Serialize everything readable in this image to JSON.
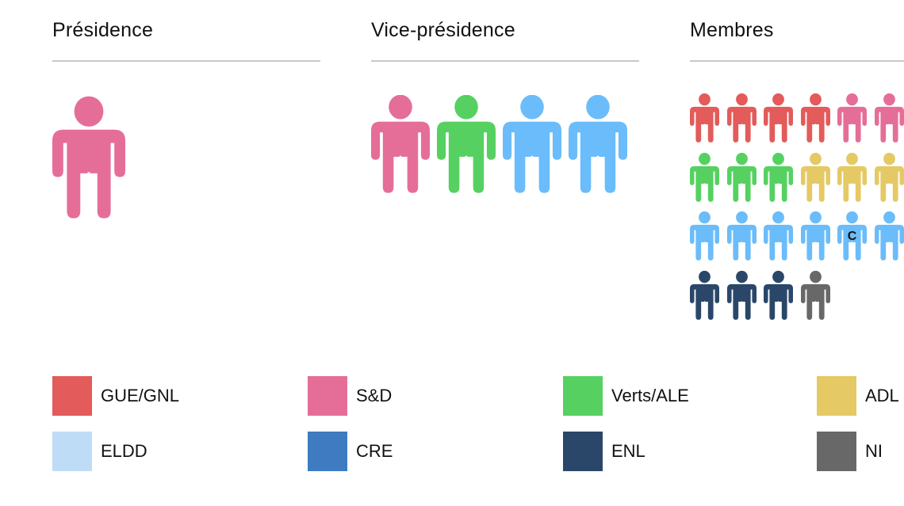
{
  "chart_data": {
    "type": "pictogram",
    "title": "",
    "groups": [
      {
        "key": "GUE/GNL",
        "label": "GUE/GNL",
        "color": "#e35b5a"
      },
      {
        "key": "S&D",
        "label": "S&D",
        "color": "#e56e98"
      },
      {
        "key": "Verts/ALE",
        "label": "Verts/ALE",
        "color": "#56d161"
      },
      {
        "key": "ADL",
        "label": "ADL",
        "color": "#e5c964"
      },
      {
        "key": "ELDD",
        "label": "ELDD",
        "color": "#bfdcf7"
      },
      {
        "key": "CRE",
        "label": "CRE",
        "color": "#3e7bc0"
      },
      {
        "key": "ENL",
        "label": "ENL",
        "color": "#2a4769"
      },
      {
        "key": "NI",
        "label": "NI",
        "color": "#686868"
      }
    ],
    "extra_colors": {
      "light_blue_figures": "#6bbcfa"
    },
    "sections": [
      {
        "title": "Présidence",
        "members": [
          {
            "color": "#e56e98",
            "group": "S&D"
          }
        ]
      },
      {
        "title": "Vice-présidence",
        "members": [
          {
            "color": "#e56e98",
            "group": "S&D"
          },
          {
            "color": "#56d161",
            "group": "Verts/ALE"
          },
          {
            "color": "#6bbcfa",
            "group": "light blue"
          },
          {
            "color": "#6bbcfa",
            "group": "light blue"
          }
        ]
      },
      {
        "title": "Membres",
        "members_by_row": [
          [
            "#e35b5a",
            "#e35b5a",
            "#e35b5a",
            "#e35b5a",
            "#e56e98",
            "#e56e98"
          ],
          [
            "#56d161",
            "#56d161",
            "#56d161",
            "#e5c964",
            "#e5c964",
            "#e5c964"
          ],
          [
            "#6bbcfa",
            "#6bbcfa",
            "#6bbcfa",
            "#6bbcfa",
            "#6bbcfa",
            "#6bbcfa"
          ],
          [
            "#2a4769",
            "#2a4769",
            "#2a4769",
            "#686868"
          ]
        ],
        "marked_member": {
          "row": 2,
          "col": 4,
          "label": "C"
        }
      }
    ]
  },
  "sections": {
    "presidence": {
      "title": "Présidence"
    },
    "vice": {
      "title": "Vice-présidence"
    },
    "membres": {
      "title": "Membres",
      "mark": "C"
    }
  },
  "legend": [
    {
      "label": "GUE/GNL",
      "color": "#e35b5a"
    },
    {
      "label": "S&D",
      "color": "#e56e98"
    },
    {
      "label": "Verts/ALE",
      "color": "#56d161"
    },
    {
      "label": "ADL",
      "color": "#e5c964"
    },
    {
      "label": "ELDD",
      "color": "#bfdcf7"
    },
    {
      "label": "CRE",
      "color": "#3e7bc0"
    },
    {
      "label": "ENL",
      "color": "#2a4769"
    },
    {
      "label": "NI",
      "color": "#686868"
    }
  ]
}
